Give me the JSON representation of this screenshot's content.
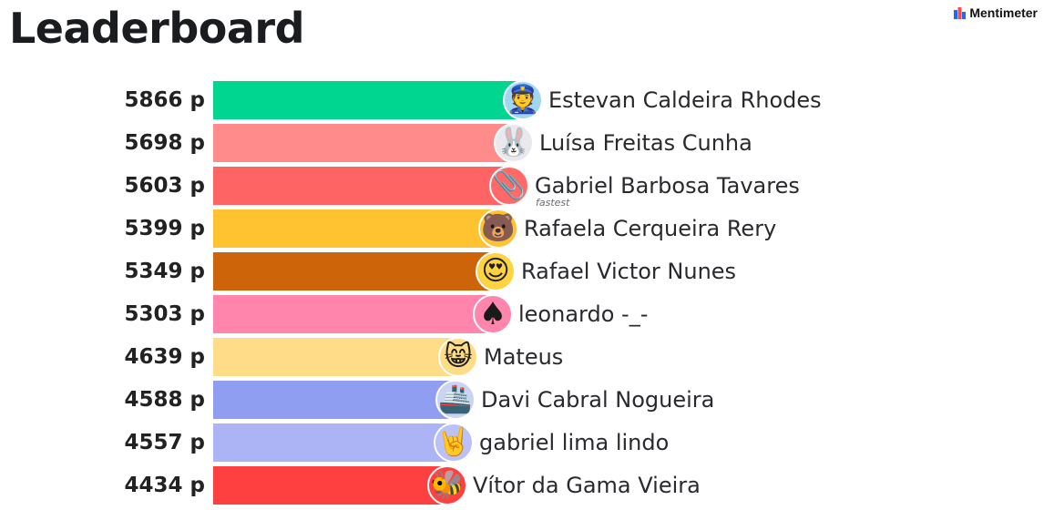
{
  "header": {
    "title": "Leaderboard"
  },
  "brand": {
    "name": "Mentimeter",
    "logo_icon": "mentimeter-logo-icon",
    "logo_colors": [
      "#196cff",
      "#ff4a4a"
    ]
  },
  "points_suffix": " p",
  "badge": {
    "fastest_label": "fastest"
  },
  "max_points": 5866,
  "players": [
    {
      "points": "5866",
      "name": "Estevan Caldeira Rhodes",
      "avatar": "👮",
      "avatar_icon": "police-officer-icon",
      "avatar_bg": "#9fd7f2",
      "bar_color": "#00d68f"
    },
    {
      "points": "5698",
      "name": "Luísa Freitas Cunha",
      "avatar": "🐰",
      "avatar_icon": "rabbit-icon",
      "avatar_bg": "#e8e8ee",
      "bar_color": "#ff8c8a"
    },
    {
      "points": "5603",
      "name": "Gabriel Barbosa Tavares",
      "avatar": "📎",
      "avatar_icon": "paperclip-icon",
      "avatar_bg": "#ff6a68",
      "bar_color": "#ff6464",
      "fastest": true
    },
    {
      "points": "5399",
      "name": "Rafaela Cerqueira Rery",
      "avatar": "🐻",
      "avatar_icon": "bear-icon",
      "avatar_bg": "#ffc332",
      "bar_color": "#ffc332"
    },
    {
      "points": "5349",
      "name": "Rafael Victor Nunes",
      "avatar": "😍",
      "avatar_icon": "heart-eyes-icon",
      "avatar_bg": "#ffd23f",
      "bar_color": "#cd640a"
    },
    {
      "points": "5303",
      "name": "leonardo -_-",
      "avatar": "♠",
      "avatar_icon": "spade-icon",
      "avatar_bg": "#ff85ac",
      "bar_color": "#ff85ac"
    },
    {
      "points": "4639",
      "name": "Mateus",
      "avatar": "😸",
      "avatar_icon": "grinning-cat-icon",
      "avatar_bg": "#ffdd88",
      "bar_color": "#ffdd88"
    },
    {
      "points": "4588",
      "name": "Davi Cabral Nogueira",
      "avatar": "🚢",
      "avatar_icon": "ship-icon",
      "avatar_bg": "#c9d3f2",
      "bar_color": "#8f9ef0"
    },
    {
      "points": "4557",
      "name": "gabriel lima lindo",
      "avatar": "🤘",
      "avatar_icon": "rock-on-hand-icon",
      "avatar_bg": "#b9c1f6",
      "bar_color": "#adb4f6"
    },
    {
      "points": "4434",
      "name": "Vítor da Gama Vieira",
      "avatar": "🐝",
      "avatar_icon": "bee-icon",
      "avatar_bg": "#ff4040",
      "bar_color": "#ff4040"
    }
  ]
}
